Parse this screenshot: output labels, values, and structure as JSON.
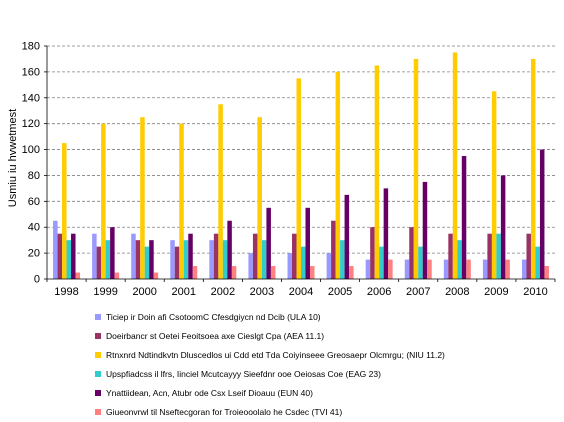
{
  "chart_data": {
    "type": "bar",
    "title": "",
    "xlabel": "",
    "ylabel": "Usmiu iu hvwetmest",
    "ylim": [
      0,
      180
    ],
    "yticks": [
      0,
      20,
      40,
      60,
      80,
      100,
      120,
      140,
      160,
      180
    ],
    "grid": "horizontal dashed",
    "legend_position": "bottom",
    "categories": [
      "1998",
      "1999",
      "2000",
      "2001",
      "2002",
      "2003",
      "2004",
      "2005",
      "2006",
      "2007",
      "2008",
      "2009",
      "2010"
    ],
    "series": [
      {
        "name": "Ticiep ir Doin afi CsotoomC Cfesdgiycn nd Dcib (ULA 10)",
        "color": "#9999ff",
        "values": [
          45,
          35,
          35,
          30,
          30,
          20,
          20,
          20,
          15,
          15,
          15,
          15,
          15
        ]
      },
      {
        "name": "Doeirbancr st Oetei Feoitsoea axe Cieslgt Cpa (AEA 11.1)",
        "color": "#993366",
        "values": [
          35,
          25,
          30,
          25,
          35,
          35,
          35,
          45,
          40,
          40,
          35,
          35,
          35
        ]
      },
      {
        "name": "Rtnxnrd Ndtindkvtn Dluscedlos ui Cdd etd Tda Coiyinseee Greosaepr Olcmrgu; (NIU 11.2)",
        "color": "#ffcc00",
        "values": [
          105,
          120,
          125,
          120,
          135,
          125,
          155,
          160,
          165,
          170,
          175,
          145,
          170
        ]
      },
      {
        "name": "Upspfiadcss il lfrs, Iinciel Mcutcayyy Sieefdnr ooe Oeiosas Coe (EAG 23)",
        "color": "#33cccc",
        "values": [
          30,
          30,
          25,
          30,
          30,
          30,
          25,
          30,
          25,
          25,
          30,
          35,
          25
        ]
      },
      {
        "name": "Ynattiidean, Acn, Atubr ode Csx Lseif Dioauu (EUN 40)",
        "color": "#660066",
        "values": [
          35,
          40,
          30,
          35,
          45,
          55,
          55,
          65,
          70,
          75,
          95,
          80,
          100
        ]
      },
      {
        "name": "Giueonvrwl til Nseftecgoran for Troieooolalo he Csdec (TVI 41)",
        "color": "#ff8080",
        "values": [
          5,
          5,
          5,
          10,
          10,
          10,
          10,
          10,
          15,
          15,
          15,
          15,
          10
        ]
      }
    ]
  }
}
